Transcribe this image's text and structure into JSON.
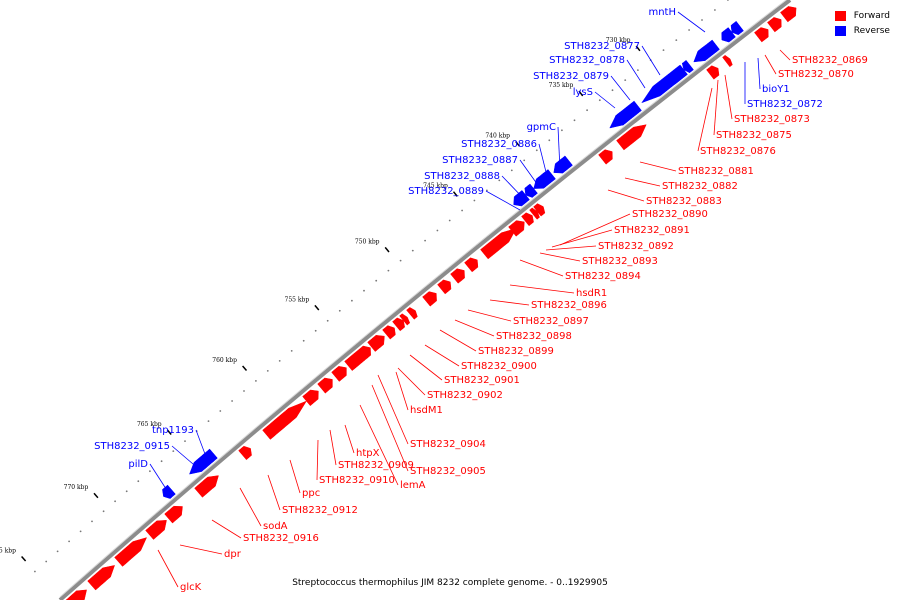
{
  "caption": "Streptococcus thermophilus JIM 8232 complete genome. - 0..1929905",
  "legend": [
    {
      "label": "Forward",
      "color": "#ff0000"
    },
    {
      "label": "Reverse",
      "color": "#0000ff"
    }
  ],
  "colors": {
    "forward": "#ff0000",
    "reverse": "#0000ff",
    "backbone": "#9a9a9a"
  },
  "ticks": [
    "730 kbp",
    "735 kbp",
    "740 kbp",
    "745 kbp",
    "750 kbp",
    "755 kbp",
    "760 kbp",
    "765 kbp",
    "770 kbp",
    "775 kbp"
  ],
  "genes_forward": [
    "STH8232_0869",
    "STH8232_0870",
    "STH8232_0873",
    "STH8232_0875",
    "STH8232_0876",
    "STH8232_0881",
    "STH8232_0882",
    "STH8232_0883",
    "STH8232_0890",
    "STH8232_0891",
    "STH8232_0892",
    "STH8232_0893",
    "STH8232_0894",
    "hsdR1",
    "STH8232_0896",
    "STH8232_0897",
    "STH8232_0898",
    "STH8232_0899",
    "STH8232_0900",
    "STH8232_0901",
    "STH8232_0902",
    "hsdM1",
    "STH8232_0904",
    "STH8232_0905",
    "htpX",
    "STH8232_0909",
    "lemA",
    "STH8232_0910",
    "ppc",
    "STH8232_0912",
    "sodA",
    "STH8232_0916",
    "dpr",
    "glcK"
  ],
  "genes_reverse": [
    "mntH",
    "STH8232_0877",
    "STH8232_0878",
    "STH8232_0879",
    "lysS",
    "gpmC",
    "STH8232_0886",
    "STH8232_0887",
    "STH8232_0888",
    "STH8232_0889",
    "bioY1",
    "STH8232_0872",
    "tnp1193",
    "STH8232_0915",
    "pilD"
  ]
}
